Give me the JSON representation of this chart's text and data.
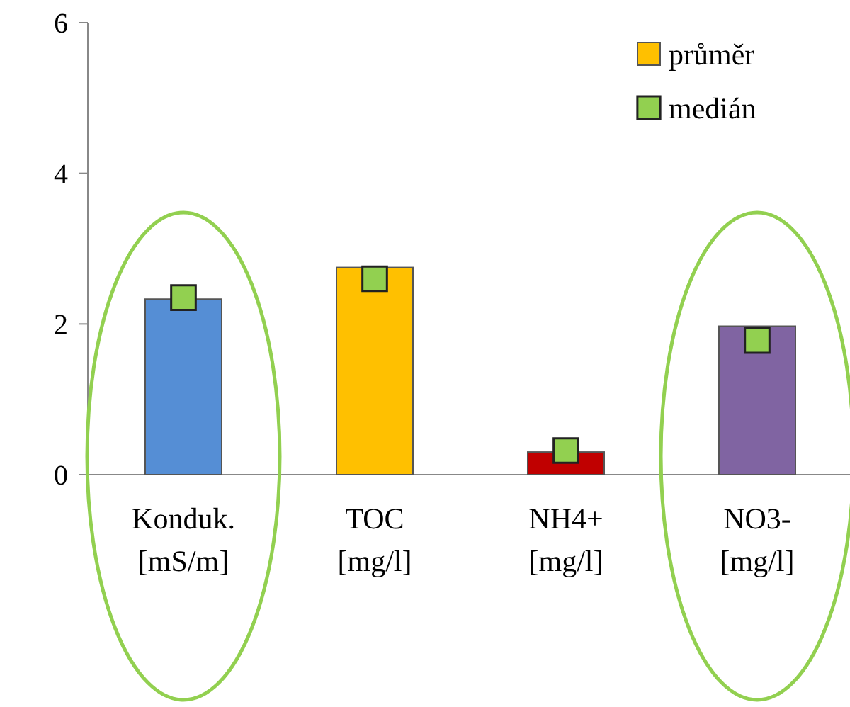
{
  "chart_data": {
    "type": "bar",
    "categories": [
      "Konduk.\n[mS/m]",
      "TOC\n[mg/l]",
      "NH4+\n[mg/l]",
      "NO3-\n[mg/l]"
    ],
    "series": [
      {
        "name": "průměr",
        "color": "#ffc000",
        "colors": [
          "#558ed5",
          "#ffc000",
          "#c00000",
          "#8064a2"
        ],
        "values": [
          2.33,
          2.75,
          0.3,
          1.97
        ]
      },
      {
        "name": "medián",
        "type": "scatter",
        "color": "#92d050",
        "x": [
          "Konduk.\n[mS/m]",
          "TOC\n[mg/l]",
          "NH4+\n[mg/l]",
          "NO3-\n[mg/l]"
        ],
        "values": [
          2.35,
          2.6,
          0.32,
          1.78
        ]
      }
    ],
    "marker": "square",
    "ylim": [
      0,
      6
    ],
    "yticks": [
      0,
      2,
      4,
      6
    ],
    "legend": "top right"
  }
}
